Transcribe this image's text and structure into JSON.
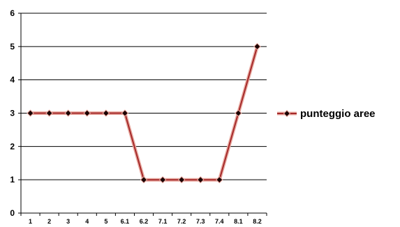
{
  "chart_data": {
    "type": "line",
    "categories": [
      "1",
      "2",
      "3",
      "4",
      "5",
      "6.1",
      "6.2",
      "7.1",
      "7.2",
      "7.3",
      "7.4",
      "8.1",
      "8.2"
    ],
    "series": [
      {
        "name": "punteggio aree",
        "values": [
          3,
          3,
          3,
          3,
          3,
          3,
          1,
          1,
          1,
          1,
          1,
          3,
          5
        ]
      }
    ],
    "title": "",
    "xlabel": "",
    "ylabel": "",
    "ylim": [
      0,
      6
    ],
    "y_ticks": [
      "0",
      "1",
      "2",
      "3",
      "4",
      "5",
      "6"
    ],
    "grid": "horizontal",
    "legend_position": "right",
    "colors": {
      "line": "#a52a2a",
      "line_shadow": "#e8a9a0",
      "marker": "#1a0000",
      "grid": "#000000",
      "axis": "#000000"
    }
  }
}
